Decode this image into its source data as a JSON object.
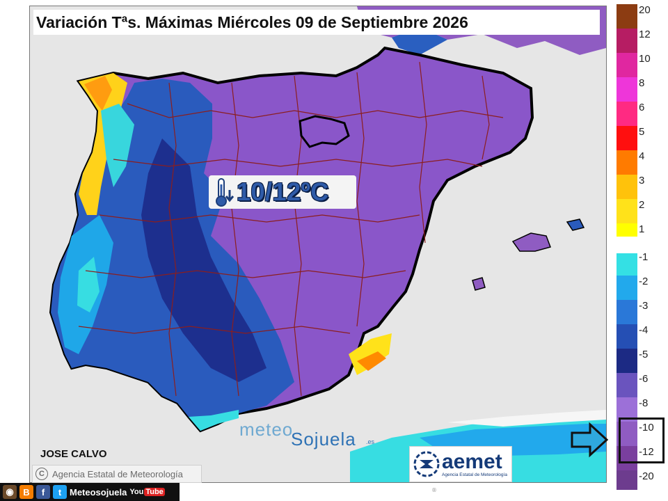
{
  "header": {
    "title": "Variación Tªs. Máximas Miércoles 09 de Septiembre 2026"
  },
  "map": {
    "annotation": {
      "text": "10/12ºC",
      "icon": "thermometer-down-icon"
    },
    "sea_color": "#e6e6e6",
    "land_main_color": "#8a56c9",
    "border_color": "#8b1e1e"
  },
  "legend": {
    "items": [
      {
        "label": "20",
        "color": "#8c3c12"
      },
      {
        "label": "12",
        "color": "#b61d63"
      },
      {
        "label": "10",
        "color": "#e027a0"
      },
      {
        "label": "8",
        "color": "#ee36d9"
      },
      {
        "label": "6",
        "color": "#ff2a82"
      },
      {
        "label": "5",
        "color": "#ff0f0f"
      },
      {
        "label": "4",
        "color": "#ff7b00"
      },
      {
        "label": "3",
        "color": "#ffc20b"
      },
      {
        "label": "2",
        "color": "#ffe21a"
      },
      {
        "label": "1",
        "color": "#ffff00"
      },
      {
        "label": "-1",
        "color": "#34e0e4"
      },
      {
        "label": "-2",
        "color": "#22a9ec"
      },
      {
        "label": "-3",
        "color": "#2a78d8"
      },
      {
        "label": "-4",
        "color": "#254fb4"
      },
      {
        "label": "-5",
        "color": "#1c2a84"
      },
      {
        "label": "-6",
        "color": "#6a54be"
      },
      {
        "label": "-8",
        "color": "#9c70d8"
      },
      {
        "label": "-10",
        "color": "#8f5cc2"
      },
      {
        "label": "-12",
        "color": "#7a3f9e"
      },
      {
        "label": "-20",
        "color": "#6d3c8e"
      }
    ],
    "highlighted": [
      "-10",
      "-12"
    ]
  },
  "credits": {
    "author": "JOSE CALVO",
    "copyright_symbol": "C",
    "copyright": "Agencia Estatal de Meteorología",
    "watermark_part1": "meteo",
    "watermark_part2": "Sojuela",
    "watermark_part3": ".es",
    "aemet_name": "aemet",
    "aemet_sub": "Agencia Estatal de Meteorología"
  },
  "social": {
    "handle": "Meteosojuela",
    "youtube_you": "You",
    "youtube_tube": "Tube"
  }
}
